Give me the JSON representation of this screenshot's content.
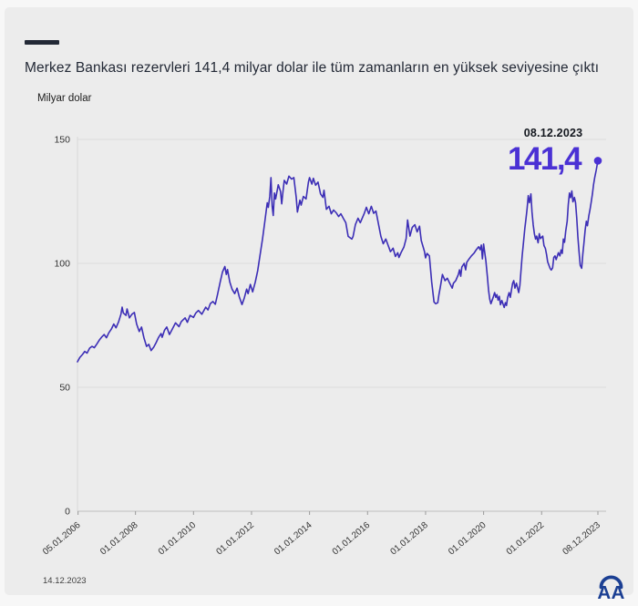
{
  "header": {
    "title": "Merkez Bankası rezervleri 141,4 milyar dolar ile tüm zamanların en yüksek seviyesine çıktı"
  },
  "annotation": {
    "date": "08.12.2023",
    "value": "141,4"
  },
  "footer": {
    "date": "14.12.2023",
    "logo": "Anadolu Ajansı (AA)"
  },
  "colors": {
    "accent_indigo": "#4a31d4",
    "line_indigo": "#3c2eb6",
    "dark_navy": "#232936",
    "logo_blue": "#1b3f93",
    "card_bg": "#ececec",
    "page_bg": "#f7f7f7",
    "grid": "#dcdcdc",
    "axis": "#c7c7c7",
    "tick_text": "#333333"
  },
  "chart_data": {
    "type": "line",
    "title": "Merkez Bankası rezervleri 141,4 milyar dolar ile tüm zamanların en yüksek seviyesine çıktı",
    "xlabel": "",
    "ylabel": "Milyar dolar",
    "ylim": [
      0,
      150
    ],
    "xlim": [
      2006.0,
      2023.94
    ],
    "grid": true,
    "y_ticks": [
      0,
      50,
      100,
      150
    ],
    "x_ticks": [
      {
        "label": "05.01.2006",
        "year": 2006.02
      },
      {
        "label": "01.01.2008",
        "year": 2008.0
      },
      {
        "label": "01.01.2010",
        "year": 2010.0
      },
      {
        "label": "01.01.2012",
        "year": 2012.0
      },
      {
        "label": "01.01.2014",
        "year": 2014.0
      },
      {
        "label": "01.01.2016",
        "year": 2016.0
      },
      {
        "label": "01.01.2018",
        "year": 2018.0
      },
      {
        "label": "01.01.2020",
        "year": 2020.0
      },
      {
        "label": "01.01.2022",
        "year": 2022.0
      },
      {
        "label": "08.12.2023",
        "year": 2023.94
      }
    ],
    "end_point": {
      "label_date": "08.12.2023",
      "value": 141.4
    },
    "series": [
      {
        "name": "Merkez Bankası rezervleri (milyar dolar)",
        "points": [
          [
            2006.0,
            60.3
          ],
          [
            2006.08,
            62.0
          ],
          [
            2006.17,
            63.2
          ],
          [
            2006.25,
            64.5
          ],
          [
            2006.33,
            63.8
          ],
          [
            2006.42,
            65.8
          ],
          [
            2006.5,
            66.5
          ],
          [
            2006.58,
            66.0
          ],
          [
            2006.67,
            67.5
          ],
          [
            2006.75,
            69.0
          ],
          [
            2006.83,
            70.2
          ],
          [
            2006.92,
            71.3
          ],
          [
            2007.0,
            70.0
          ],
          [
            2007.08,
            72.0
          ],
          [
            2007.17,
            73.5
          ],
          [
            2007.25,
            75.5
          ],
          [
            2007.33,
            74.0
          ],
          [
            2007.42,
            76.5
          ],
          [
            2007.5,
            79.5
          ],
          [
            2007.54,
            82.3
          ],
          [
            2007.58,
            80.0
          ],
          [
            2007.67,
            79.0
          ],
          [
            2007.71,
            81.6
          ],
          [
            2007.79,
            78.0
          ],
          [
            2007.88,
            79.5
          ],
          [
            2007.96,
            80.2
          ],
          [
            2008.04,
            75.5
          ],
          [
            2008.13,
            72.5
          ],
          [
            2008.21,
            74.3
          ],
          [
            2008.29,
            70.0
          ],
          [
            2008.38,
            66.5
          ],
          [
            2008.46,
            67.3
          ],
          [
            2008.54,
            64.8
          ],
          [
            2008.63,
            66.2
          ],
          [
            2008.71,
            68.0
          ],
          [
            2008.79,
            70.0
          ],
          [
            2008.88,
            71.7
          ],
          [
            2008.92,
            70.2
          ],
          [
            2009.0,
            73.0
          ],
          [
            2009.08,
            74.3
          ],
          [
            2009.17,
            71.3
          ],
          [
            2009.25,
            73.0
          ],
          [
            2009.38,
            76.0
          ],
          [
            2009.5,
            74.5
          ],
          [
            2009.58,
            76.5
          ],
          [
            2009.71,
            78.0
          ],
          [
            2009.79,
            76.2
          ],
          [
            2009.88,
            79.0
          ],
          [
            2010.0,
            78.2
          ],
          [
            2010.08,
            80.0
          ],
          [
            2010.17,
            81.0
          ],
          [
            2010.29,
            79.5
          ],
          [
            2010.42,
            82.3
          ],
          [
            2010.5,
            81.2
          ],
          [
            2010.58,
            83.8
          ],
          [
            2010.67,
            84.6
          ],
          [
            2010.75,
            83.5
          ],
          [
            2010.83,
            87.5
          ],
          [
            2010.92,
            92.5
          ],
          [
            2011.0,
            96.5
          ],
          [
            2011.08,
            98.7
          ],
          [
            2011.13,
            95.5
          ],
          [
            2011.17,
            97.5
          ],
          [
            2011.25,
            92.5
          ],
          [
            2011.33,
            89.6
          ],
          [
            2011.42,
            87.8
          ],
          [
            2011.5,
            90.0
          ],
          [
            2011.58,
            86.4
          ],
          [
            2011.67,
            83.4
          ],
          [
            2011.75,
            86.0
          ],
          [
            2011.83,
            89.6
          ],
          [
            2011.88,
            87.8
          ],
          [
            2011.96,
            91.5
          ],
          [
            2012.04,
            88.5
          ],
          [
            2012.13,
            92.5
          ],
          [
            2012.21,
            97.0
          ],
          [
            2012.29,
            103.0
          ],
          [
            2012.38,
            110.0
          ],
          [
            2012.46,
            117.0
          ],
          [
            2012.5,
            120.7
          ],
          [
            2012.54,
            124.4
          ],
          [
            2012.58,
            122.6
          ],
          [
            2012.63,
            127.0
          ],
          [
            2012.67,
            134.6
          ],
          [
            2012.71,
            123.0
          ],
          [
            2012.75,
            119.3
          ],
          [
            2012.79,
            128.4
          ],
          [
            2012.83,
            126.0
          ],
          [
            2012.92,
            131.7
          ],
          [
            2013.0,
            129.0
          ],
          [
            2013.04,
            124.0
          ],
          [
            2013.08,
            128.4
          ],
          [
            2013.13,
            133.5
          ],
          [
            2013.21,
            132.0
          ],
          [
            2013.29,
            135.2
          ],
          [
            2013.38,
            134.0
          ],
          [
            2013.46,
            134.6
          ],
          [
            2013.54,
            126.6
          ],
          [
            2013.58,
            120.7
          ],
          [
            2013.67,
            125.5
          ],
          [
            2013.71,
            123.5
          ],
          [
            2013.79,
            127.0
          ],
          [
            2013.88,
            126.0
          ],
          [
            2013.96,
            132.8
          ],
          [
            2014.0,
            134.6
          ],
          [
            2014.08,
            132.0
          ],
          [
            2014.13,
            134.3
          ],
          [
            2014.21,
            131.5
          ],
          [
            2014.29,
            132.8
          ],
          [
            2014.38,
            128.0
          ],
          [
            2014.46,
            126.6
          ],
          [
            2014.5,
            129.5
          ],
          [
            2014.58,
            121.8
          ],
          [
            2014.67,
            123.0
          ],
          [
            2014.75,
            120.0
          ],
          [
            2014.83,
            121.5
          ],
          [
            2014.92,
            120.4
          ],
          [
            2015.0,
            118.9
          ],
          [
            2015.08,
            120.0
          ],
          [
            2015.17,
            118.0
          ],
          [
            2015.25,
            116.4
          ],
          [
            2015.33,
            110.9
          ],
          [
            2015.46,
            109.8
          ],
          [
            2015.5,
            110.9
          ],
          [
            2015.58,
            115.6
          ],
          [
            2015.67,
            118.2
          ],
          [
            2015.75,
            116.4
          ],
          [
            2015.88,
            120.0
          ],
          [
            2015.96,
            122.6
          ],
          [
            2016.04,
            120.0
          ],
          [
            2016.13,
            123.0
          ],
          [
            2016.21,
            120.2
          ],
          [
            2016.29,
            121.1
          ],
          [
            2016.38,
            115.6
          ],
          [
            2016.46,
            110.9
          ],
          [
            2016.54,
            107.9
          ],
          [
            2016.63,
            109.8
          ],
          [
            2016.71,
            107.2
          ],
          [
            2016.79,
            104.7
          ],
          [
            2016.88,
            106.1
          ],
          [
            2016.96,
            102.8
          ],
          [
            2017.04,
            104.3
          ],
          [
            2017.08,
            102.4
          ],
          [
            2017.17,
            104.7
          ],
          [
            2017.25,
            106.5
          ],
          [
            2017.33,
            110.0
          ],
          [
            2017.38,
            117.5
          ],
          [
            2017.46,
            111.0
          ],
          [
            2017.54,
            114.5
          ],
          [
            2017.63,
            115.6
          ],
          [
            2017.71,
            112.7
          ],
          [
            2017.79,
            115.0
          ],
          [
            2017.85,
            109.2
          ],
          [
            2017.96,
            104.8
          ],
          [
            2018.0,
            102.2
          ],
          [
            2018.05,
            104.0
          ],
          [
            2018.13,
            103.0
          ],
          [
            2018.21,
            92.6
          ],
          [
            2018.29,
            84.4
          ],
          [
            2018.35,
            83.7
          ],
          [
            2018.42,
            84.1
          ],
          [
            2018.46,
            87.4
          ],
          [
            2018.5,
            90.0
          ],
          [
            2018.58,
            95.5
          ],
          [
            2018.67,
            93.0
          ],
          [
            2018.75,
            94.0
          ],
          [
            2018.83,
            92.0
          ],
          [
            2018.92,
            90.0
          ],
          [
            2018.96,
            92.0
          ],
          [
            2019.04,
            93.0
          ],
          [
            2019.13,
            95.5
          ],
          [
            2019.17,
            97.4
          ],
          [
            2019.21,
            94.8
          ],
          [
            2019.25,
            98.5
          ],
          [
            2019.33,
            100.0
          ],
          [
            2019.38,
            97.4
          ],
          [
            2019.42,
            100.4
          ],
          [
            2019.5,
            101.8
          ],
          [
            2019.58,
            103.0
          ],
          [
            2019.67,
            104.1
          ],
          [
            2019.75,
            105.5
          ],
          [
            2019.83,
            106.7
          ],
          [
            2019.88,
            105.5
          ],
          [
            2019.92,
            107.4
          ],
          [
            2019.96,
            101.8
          ],
          [
            2020.0,
            107.8
          ],
          [
            2020.08,
            101.0
          ],
          [
            2020.13,
            94.8
          ],
          [
            2020.17,
            89.3
          ],
          [
            2020.21,
            85.6
          ],
          [
            2020.25,
            83.7
          ],
          [
            2020.33,
            86.3
          ],
          [
            2020.38,
            88.2
          ],
          [
            2020.42,
            86.3
          ],
          [
            2020.46,
            87.4
          ],
          [
            2020.5,
            85.2
          ],
          [
            2020.54,
            86.7
          ],
          [
            2020.58,
            83.3
          ],
          [
            2020.63,
            85.0
          ],
          [
            2020.71,
            82.2
          ],
          [
            2020.75,
            84.1
          ],
          [
            2020.79,
            83.0
          ],
          [
            2020.83,
            86.3
          ],
          [
            2020.88,
            88.2
          ],
          [
            2020.92,
            86.3
          ],
          [
            2020.96,
            89.3
          ],
          [
            2021.0,
            91.9
          ],
          [
            2021.04,
            93.0
          ],
          [
            2021.08,
            90.0
          ],
          [
            2021.13,
            92.0
          ],
          [
            2021.21,
            88.2
          ],
          [
            2021.25,
            91.1
          ],
          [
            2021.29,
            97.4
          ],
          [
            2021.33,
            103.0
          ],
          [
            2021.38,
            109.0
          ],
          [
            2021.42,
            114.0
          ],
          [
            2021.46,
            118.0
          ],
          [
            2021.5,
            122.0
          ],
          [
            2021.54,
            127.3
          ],
          [
            2021.58,
            124.5
          ],
          [
            2021.63,
            128.0
          ],
          [
            2021.67,
            120.7
          ],
          [
            2021.71,
            115.6
          ],
          [
            2021.75,
            112.0
          ],
          [
            2021.79,
            109.8
          ],
          [
            2021.83,
            111.0
          ],
          [
            2021.88,
            108.3
          ],
          [
            2021.92,
            112.0
          ],
          [
            2021.96,
            110.0
          ],
          [
            2022.04,
            111.0
          ],
          [
            2022.08,
            107.2
          ],
          [
            2022.13,
            106.0
          ],
          [
            2022.17,
            103.5
          ],
          [
            2022.21,
            100.6
          ],
          [
            2022.29,
            98.0
          ],
          [
            2022.33,
            97.3
          ],
          [
            2022.38,
            98.2
          ],
          [
            2022.42,
            102.4
          ],
          [
            2022.46,
            103.0
          ],
          [
            2022.5,
            101.5
          ],
          [
            2022.58,
            104.3
          ],
          [
            2022.63,
            103.0
          ],
          [
            2022.67,
            105.4
          ],
          [
            2022.71,
            104.0
          ],
          [
            2022.75,
            109.8
          ],
          [
            2022.79,
            108.5
          ],
          [
            2022.83,
            113.0
          ],
          [
            2022.88,
            117.0
          ],
          [
            2022.92,
            123.7
          ],
          [
            2022.96,
            128.4
          ],
          [
            2023.0,
            126.5
          ],
          [
            2023.04,
            129.2
          ],
          [
            2023.08,
            124.8
          ],
          [
            2023.13,
            126.6
          ],
          [
            2023.17,
            124.4
          ],
          [
            2023.21,
            118.2
          ],
          [
            2023.25,
            110.9
          ],
          [
            2023.29,
            104.7
          ],
          [
            2023.33,
            99.2
          ],
          [
            2023.38,
            98.0
          ],
          [
            2023.42,
            103.5
          ],
          [
            2023.46,
            108.3
          ],
          [
            2023.5,
            113.4
          ],
          [
            2023.54,
            117.0
          ],
          [
            2023.58,
            115.2
          ],
          [
            2023.63,
            119.3
          ],
          [
            2023.67,
            121.8
          ],
          [
            2023.71,
            124.8
          ],
          [
            2023.75,
            128.0
          ],
          [
            2023.79,
            131.7
          ],
          [
            2023.83,
            134.6
          ],
          [
            2023.88,
            137.5
          ],
          [
            2023.94,
            141.4
          ]
        ]
      }
    ]
  }
}
